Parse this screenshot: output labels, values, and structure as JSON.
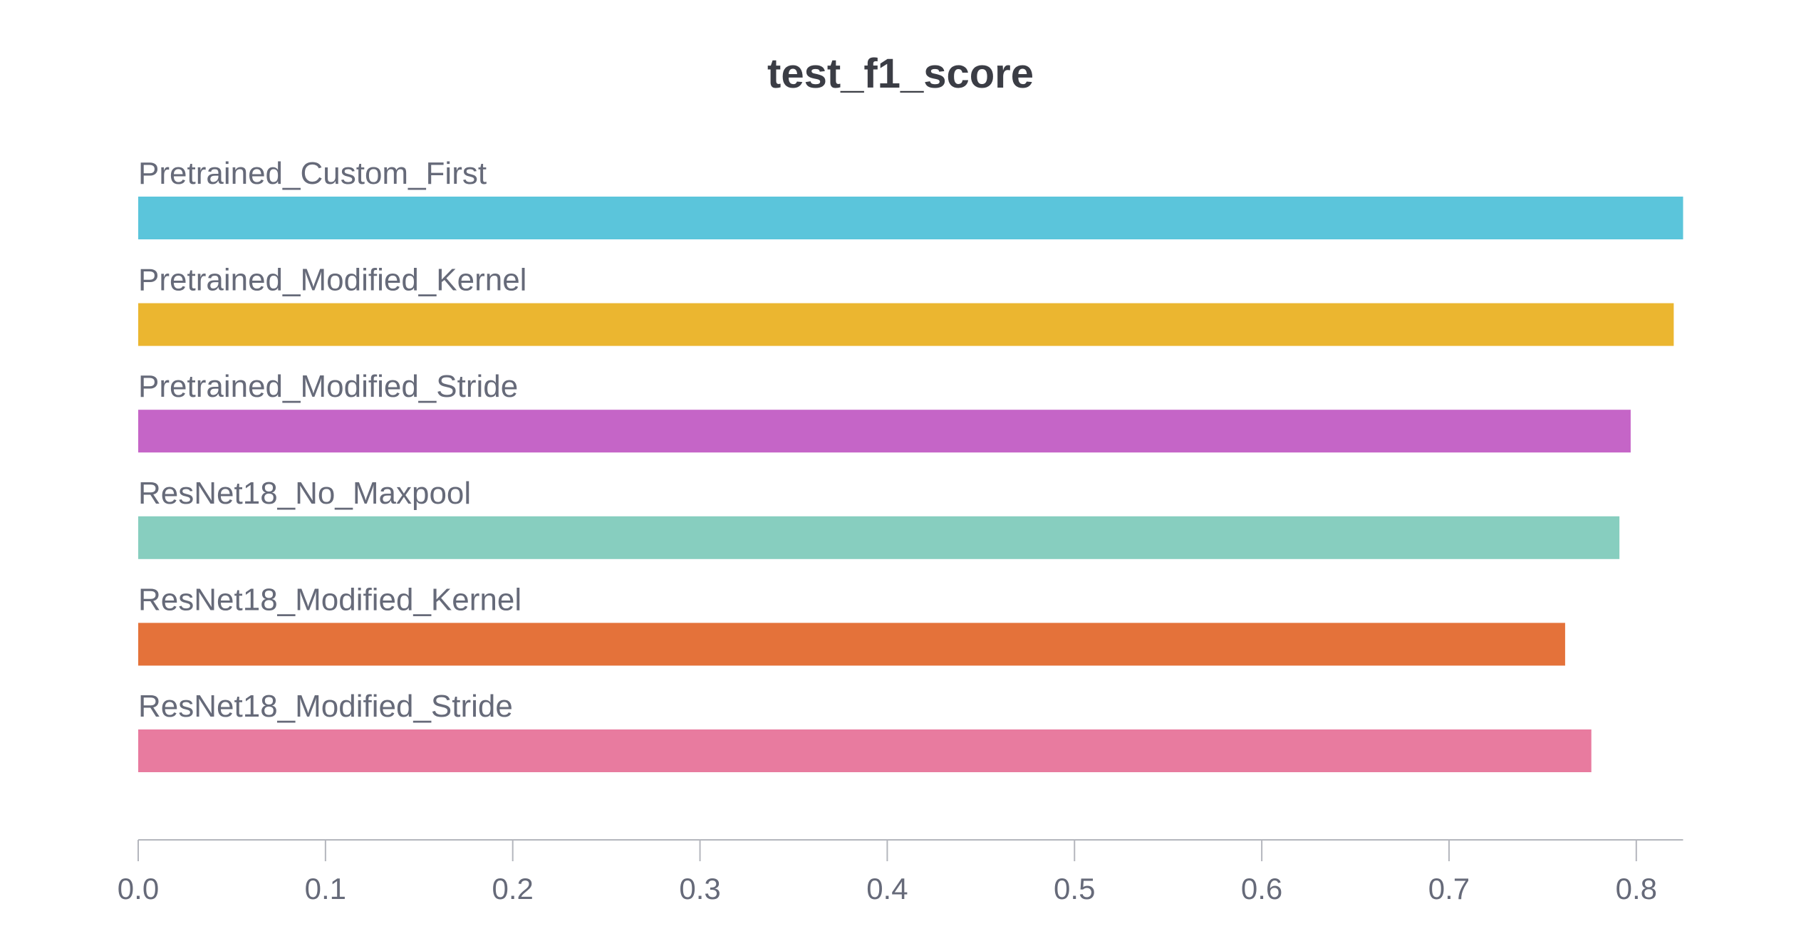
{
  "chart_data": {
    "type": "bar",
    "orientation": "horizontal",
    "title": "test_f1_score",
    "xlabel": "",
    "ylabel": "",
    "xlim": [
      0,
      0.825
    ],
    "grid": false,
    "legend": "none",
    "x_ticks": [
      "0.0",
      "0.1",
      "0.2",
      "0.3",
      "0.4",
      "0.5",
      "0.6",
      "0.7",
      "0.8"
    ],
    "series": [
      {
        "categories": [
          "Pretrained_Custom_First",
          "Pretrained_Modified_Kernel",
          "Pretrained_Modified_Stride",
          "ResNet18_No_Maxpool",
          "ResNet18_Modified_Kernel",
          "ResNet18_Modified_Stride"
        ],
        "values": [
          0.825,
          0.82,
          0.797,
          0.791,
          0.762,
          0.776
        ],
        "colors": [
          "#5bc5db",
          "#ebb630",
          "#c565c7",
          "#87cebf",
          "#e4723a",
          "#e87b9f"
        ]
      }
    ]
  }
}
